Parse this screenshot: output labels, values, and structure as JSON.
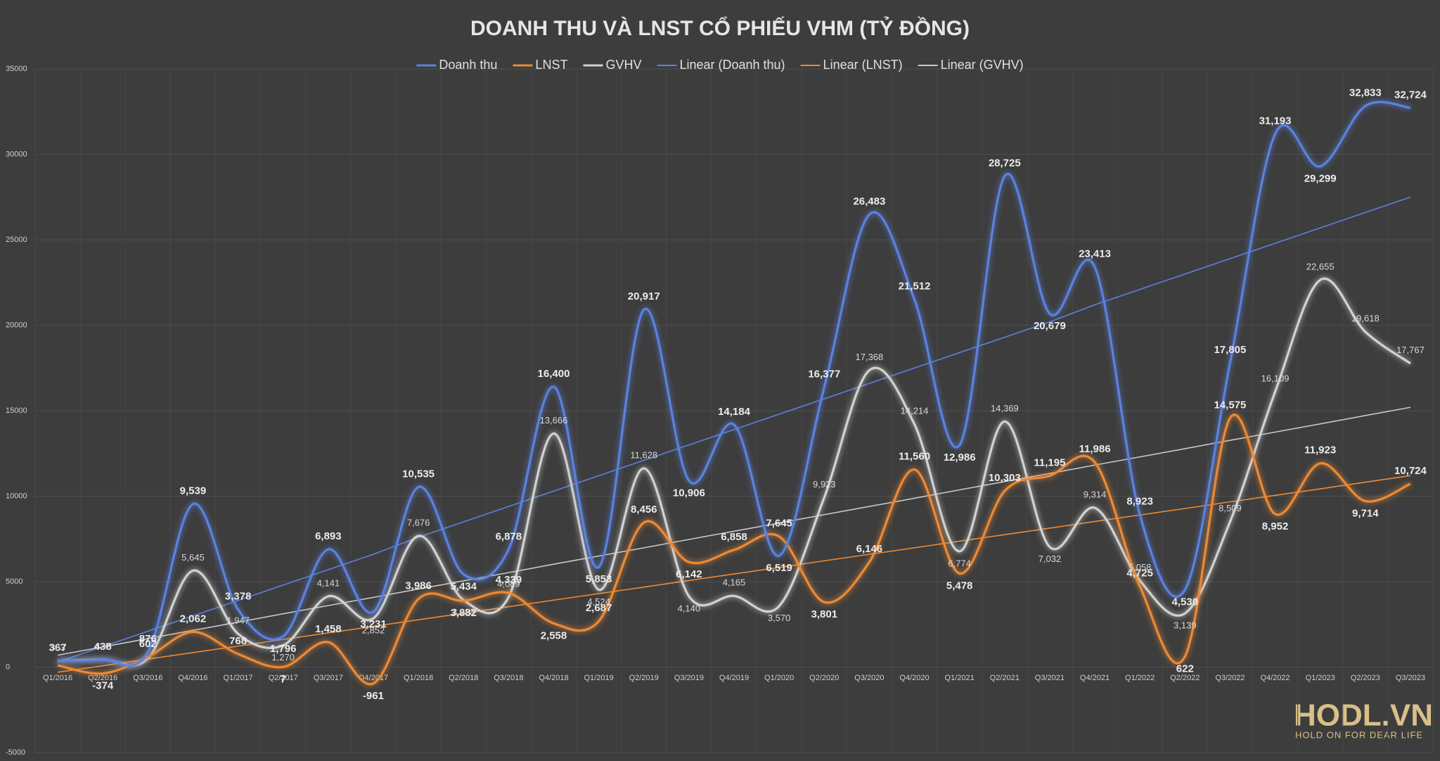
{
  "chart_data": {
    "type": "line",
    "title": "DOANH THU VÀ LNST CỔ PHIẾU VHM (TỶ ĐỒNG)",
    "categories": [
      "Q1/2016",
      "Q2/2016",
      "Q3/2016",
      "Q4/2016",
      "Q1/2017",
      "Q2/2017",
      "Q3/2017",
      "Q4/2017",
      "Q1/2018",
      "Q2/2018",
      "Q3/2018",
      "Q4/2018",
      "Q1/2019",
      "Q2/2019",
      "Q3/2019",
      "Q4/2019",
      "Q1/2020",
      "Q2/2020",
      "Q3/2020",
      "Q4/2020",
      "Q1/2021",
      "Q2/2021",
      "Q3/2021",
      "Q4/2021",
      "Q1/2022",
      "Q2/2022",
      "Q3/2022",
      "Q4/2022",
      "Q1/2023",
      "Q2/2023",
      "Q3/2023"
    ],
    "series": [
      {
        "name": "Doanh thu",
        "color": "#5a82e0",
        "style": "main",
        "values": [
          367,
          438,
          876,
          9539,
          3378,
          1796,
          6893,
          3231,
          10535,
          5434,
          6878,
          16400,
          5853,
          20917,
          10906,
          14184,
          6519,
          16377,
          26483,
          21512,
          12986,
          28725,
          20679,
          23413,
          8923,
          4530,
          17805,
          31193,
          29299,
          32833,
          32724
        ],
        "value_labels": [
          "367",
          "438",
          "876",
          "9,539",
          "3,378",
          "1,796",
          "6,893",
          "3,231",
          "10,535",
          "5,434",
          "6,878",
          "16,400",
          "5,853",
          "20,917",
          "10,906",
          "14,184",
          "6,519",
          "16,377",
          "26,483",
          "21,512",
          "12,986",
          "28,725",
          "20,679",
          "23,413",
          "8,923",
          "4,530",
          "17,805",
          "31,193",
          "29,299",
          "32,833",
          "32,724"
        ]
      },
      {
        "name": "LNST",
        "color": "#ec8a36",
        "style": "main",
        "values": [
          100,
          -374,
          602,
          2062,
          768,
          7,
          1458,
          -961,
          3986,
          3882,
          4339,
          2558,
          2687,
          8456,
          6142,
          6858,
          7645,
          3801,
          6146,
          11560,
          5478,
          10303,
          11195,
          11986,
          4725,
          622,
          14575,
          8952,
          11923,
          9714,
          10724
        ],
        "value_labels": [
          null,
          "-374",
          "602",
          "2,062",
          "768",
          "7",
          "1,458",
          "-961",
          "3,986",
          "3,882",
          "4,339",
          "2,558",
          "2,687",
          "8,456",
          "6,142",
          "6,858",
          "7,645",
          "3,801",
          "6,146",
          "11,560",
          "5,478",
          "10,303",
          "11,195",
          "11,986",
          "4,725",
          "622",
          "14,575",
          "8,952",
          "11,923",
          "9,714",
          "10,724"
        ]
      },
      {
        "name": "GVHV",
        "color": "#d2d2d2",
        "style": "main",
        "values": [
          363,
          437,
          500,
          5645,
          1947,
          1270,
          4141,
          2852,
          7676,
          3923,
          4089,
          13666,
          4524,
          11628,
          4140,
          4165,
          3570,
          9923,
          17368,
          14214,
          6774,
          14369,
          7032,
          9314,
          5058,
          3139,
          8509,
          16109,
          22655,
          19618,
          17767
        ],
        "value_labels": [
          "363",
          "437",
          null,
          "5,645",
          "1,947",
          "1,270",
          "4,141",
          "2,852",
          "7,676",
          "3,923",
          "4,089",
          "13,666",
          "4,524",
          "11,628",
          "4,140",
          "4,165",
          "3,570",
          "9,923",
          "17,368",
          "14,214",
          "6,774",
          "14,369",
          "7,032",
          "9,314",
          "5,058",
          "3,139",
          "8,509",
          "16,109",
          "22,655",
          "19,618",
          "17,767"
        ]
      },
      {
        "name": "Linear (Doanh thu)",
        "color": "#5a82e0",
        "style": "trend",
        "values": [
          300,
          1200,
          2100,
          3000,
          3900,
          4800,
          5700,
          6600,
          7600,
          8500,
          9400,
          10300,
          11200,
          12100,
          13000,
          13900,
          14800,
          15700,
          16600,
          17500,
          18400,
          19300,
          20200,
          21200,
          22100,
          23000,
          23900,
          24800,
          25700,
          26600,
          27500
        ]
      },
      {
        "name": "Linear (LNST)",
        "color": "#ec8a36",
        "style": "trend",
        "values": [
          -300,
          80,
          470,
          850,
          1230,
          1620,
          2000,
          2380,
          2770,
          3150,
          3530,
          3920,
          4300,
          4680,
          5070,
          5450,
          5830,
          6220,
          6600,
          6980,
          7370,
          7750,
          8130,
          8520,
          8900,
          9280,
          9670,
          10050,
          10430,
          10820,
          11200
        ]
      },
      {
        "name": "Linear (GVHV)",
        "color": "#c8c8c8",
        "style": "trend",
        "values": [
          700,
          1180,
          1670,
          2150,
          2630,
          3120,
          3600,
          4080,
          4570,
          5050,
          5530,
          6020,
          6500,
          6980,
          7470,
          7950,
          8430,
          8920,
          9400,
          9880,
          10370,
          10850,
          11330,
          11820,
          12300,
          12780,
          13270,
          13750,
          14230,
          14720,
          15200
        ]
      }
    ],
    "ylim": [
      -5000,
      35000
    ],
    "yticks": [
      -5000,
      0,
      5000,
      10000,
      15000,
      20000,
      25000,
      30000,
      35000
    ],
    "grid": true,
    "legend": "top"
  },
  "logo": {
    "name": "HODL.VN",
    "tagline": "HOLD ON FOR DEAR LIFE"
  }
}
